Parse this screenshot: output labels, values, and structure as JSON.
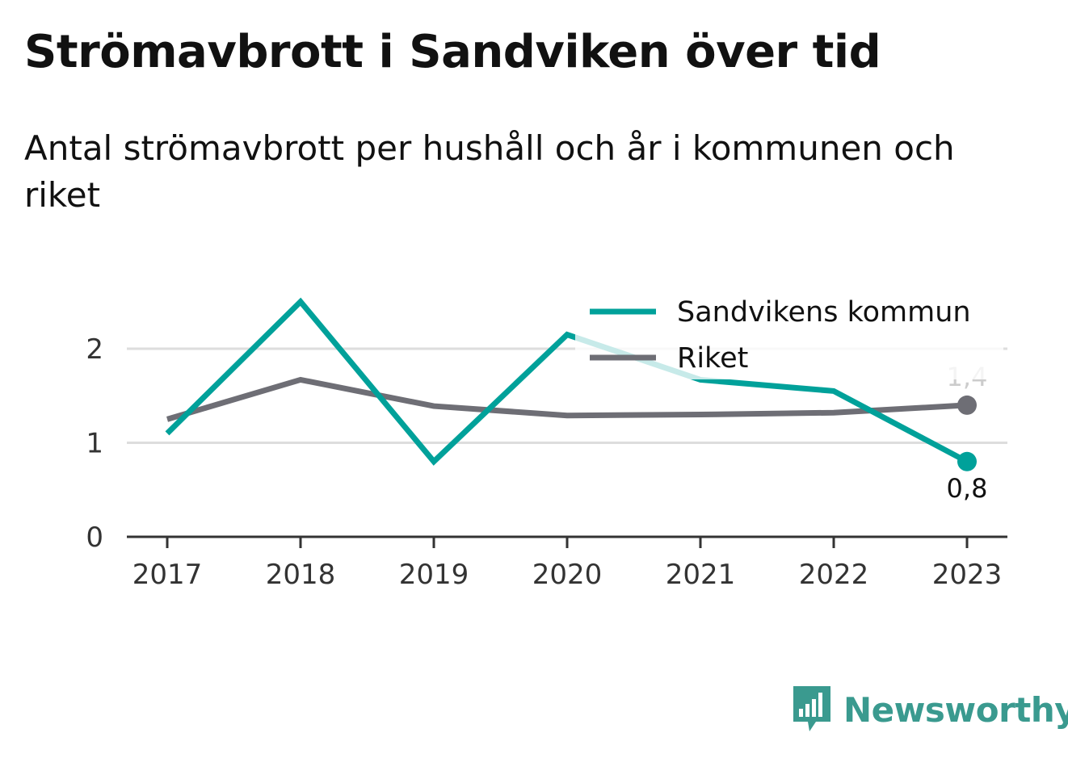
{
  "header": {
    "title": "Strömavbrott i Sandviken över tid",
    "subtitle": "Antal strömavbrott per hushåll och år i kommunen och riket"
  },
  "colors": {
    "sandviken": "#00a19a",
    "riket": "#6e6e75",
    "grid": "#dddddd",
    "axis": "#333333"
  },
  "chart_data": {
    "type": "line",
    "x": [
      "2017",
      "2018",
      "2019",
      "2020",
      "2021",
      "2022",
      "2023"
    ],
    "series": [
      {
        "name": "Sandvikens kommun",
        "values": [
          1.1,
          2.5,
          0.8,
          2.15,
          1.67,
          1.55,
          0.8
        ]
      },
      {
        "name": "Riket",
        "values": [
          1.25,
          1.67,
          1.39,
          1.29,
          1.3,
          1.32,
          1.4
        ]
      }
    ],
    "end_labels": [
      "0,8",
      "1,4"
    ],
    "y_ticks": [
      "0",
      "1",
      "2"
    ],
    "ylim": [
      0,
      2.5
    ],
    "grid": true,
    "legend_position": "top-right"
  },
  "brand": {
    "name": "Newsworthy",
    "logo_icon": "bar-chart-speech-bubble-icon"
  }
}
